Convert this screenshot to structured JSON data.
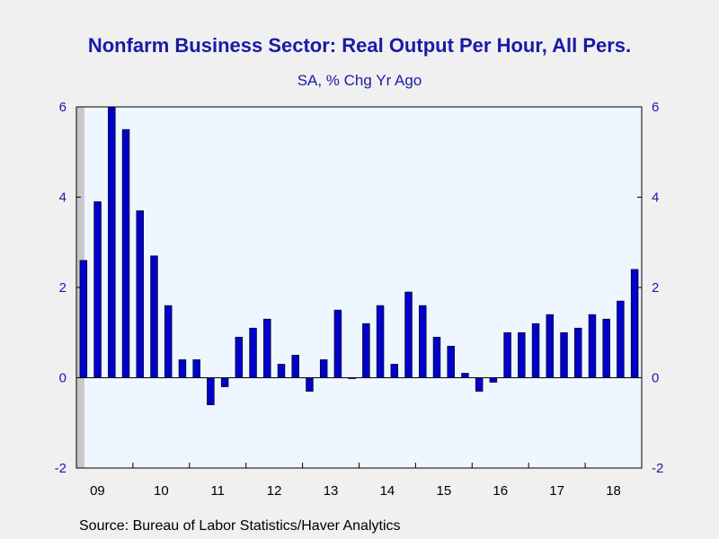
{
  "chart_data": {
    "type": "bar",
    "title": "Nonfarm Business Sector: Real Output Per Hour, All Pers.",
    "subtitle": "SA, % Chg Yr Ago",
    "source": "Source:  Bureau of Labor Statistics/Haver Analytics",
    "ylim": [
      -2,
      6
    ],
    "yticks": [
      "-2",
      "0",
      "2",
      "4",
      "6"
    ],
    "year_labels": [
      "09",
      "10",
      "11",
      "12",
      "13",
      "14",
      "15",
      "16",
      "17",
      "18"
    ],
    "recession_shading": "2009 Q1–Q2",
    "bar_color": "#0000c8",
    "plot_background": "#eef6ff",
    "categories": [
      "09Q1",
      "09Q2",
      "09Q3",
      "09Q4",
      "10Q1",
      "10Q2",
      "10Q3",
      "10Q4",
      "11Q1",
      "11Q2",
      "11Q3",
      "11Q4",
      "12Q1",
      "12Q2",
      "12Q3",
      "12Q4",
      "13Q1",
      "13Q2",
      "13Q3",
      "13Q4",
      "14Q1",
      "14Q2",
      "14Q3",
      "14Q4",
      "15Q1",
      "15Q2",
      "15Q3",
      "15Q4",
      "16Q1",
      "16Q2",
      "16Q3",
      "16Q4",
      "17Q1",
      "17Q2",
      "17Q3",
      "17Q4",
      "18Q1",
      "18Q2",
      "18Q3",
      "18Q4"
    ],
    "values": [
      2.6,
      3.9,
      6.0,
      5.5,
      3.7,
      2.7,
      1.6,
      0.4,
      0.4,
      -0.6,
      -0.2,
      0.9,
      1.1,
      1.3,
      0.3,
      0.5,
      -0.3,
      0.4,
      1.5,
      0.0,
      1.2,
      1.6,
      0.3,
      1.9,
      1.6,
      0.9,
      0.7,
      0.1,
      -0.3,
      -0.1,
      1.0,
      1.0,
      1.2,
      1.4,
      1.0,
      1.1,
      1.4,
      1.3,
      1.7,
      2.4
    ]
  }
}
